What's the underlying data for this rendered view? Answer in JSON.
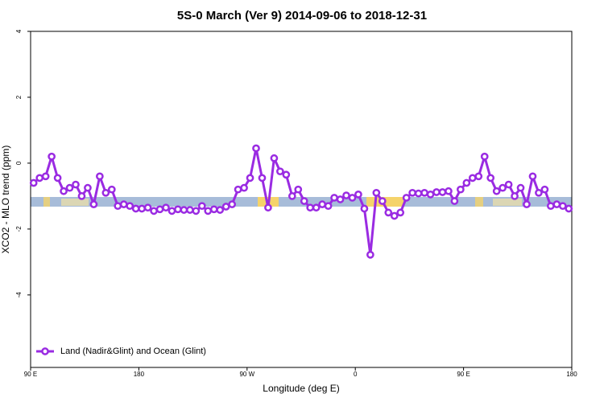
{
  "chart_data": {
    "type": "line",
    "title": "5S-0 March (Ver 9)   2014-09-06 to 2018-12-31",
    "x_label": "Longitude (deg E)",
    "y_label": "XCO2 - MLO trend (ppm)",
    "xlim": [
      90,
      540
    ],
    "ylim": [
      -6.2,
      4
    ],
    "xticks": [
      {
        "value": 90,
        "label": "90 E"
      },
      180,
      {
        "value": 270,
        "label": "90 W"
      },
      {
        "value": 360,
        "label": "0"
      },
      {
        "value": 450,
        "label": "90 E"
      },
      {
        "value": 540,
        "label": "180"
      }
    ],
    "yticks": [
      -4,
      -2,
      0,
      2,
      4
    ],
    "legend": "lower left",
    "x": [
      92.5,
      97.5,
      102.5,
      107.5,
      112.5,
      117.5,
      122.5,
      127.5,
      132.5,
      137.5,
      142.5,
      147.5,
      152.5,
      157.5,
      162.5,
      167.5,
      172.5,
      177.5,
      182.5,
      187.5,
      192.5,
      197.5,
      202.5,
      207.5,
      212.5,
      217.5,
      222.5,
      227.5,
      232.5,
      237.5,
      242.5,
      247.5,
      252.5,
      257.5,
      262.5,
      267.5,
      272.5,
      277.5,
      282.5,
      287.5,
      292.5,
      297.5,
      302.5,
      307.5,
      312.5,
      317.5,
      322.5,
      327.5,
      332.5,
      337.5,
      342.5,
      347.5,
      352.5,
      357.5,
      362.5,
      367.5,
      372.5,
      377.5,
      382.5,
      387.5,
      392.5,
      397.5,
      402.5,
      407.5,
      412.5,
      417.5,
      422.5,
      427.5,
      432.5,
      437.5,
      442.5,
      447.5,
      452.5,
      457.5,
      462.5,
      467.5,
      472.5,
      477.5,
      482.5,
      487.5,
      492.5,
      497.5,
      502.5,
      507.5,
      512.5,
      517.5,
      522.5,
      527.5,
      532.5,
      537.5
    ],
    "series": [
      {
        "name": "Land (Nadir&Glint) and Ocean (Glint)",
        "color": "#9a2be2",
        "values": [
          -0.6,
          -0.45,
          -0.4,
          0.2,
          -0.45,
          -0.85,
          -0.75,
          -0.65,
          -1.0,
          -0.75,
          -1.25,
          -0.4,
          -0.9,
          -0.8,
          -1.3,
          -1.25,
          -1.3,
          -1.38,
          -1.38,
          -1.35,
          -1.45,
          -1.4,
          -1.35,
          -1.45,
          -1.4,
          -1.42,
          -1.42,
          -1.45,
          -1.3,
          -1.45,
          -1.4,
          -1.42,
          -1.32,
          -1.25,
          -0.8,
          -0.75,
          -0.45,
          0.45,
          -0.45,
          -1.35,
          0.15,
          -0.25,
          -0.35,
          -1.0,
          -0.8,
          -1.15,
          -1.35,
          -1.35,
          -1.25,
          -1.3,
          -1.05,
          -1.1,
          -0.98,
          -1.05,
          -0.95,
          -1.38,
          -2.78,
          -0.9,
          -1.15,
          -1.5,
          -1.6,
          -1.5,
          -1.05,
          -0.9,
          -0.92,
          -0.9,
          -0.95,
          -0.88,
          -0.88,
          -0.85,
          -1.15,
          -0.8,
          -0.6,
          -0.45,
          -0.4,
          0.2,
          -0.45,
          -0.85,
          -0.75,
          -0.65,
          -1.0,
          -0.75,
          -1.25,
          -0.4,
          -0.9,
          -0.8,
          -1.3,
          -1.25,
          -1.3,
          -1.38
        ]
      }
    ]
  }
}
